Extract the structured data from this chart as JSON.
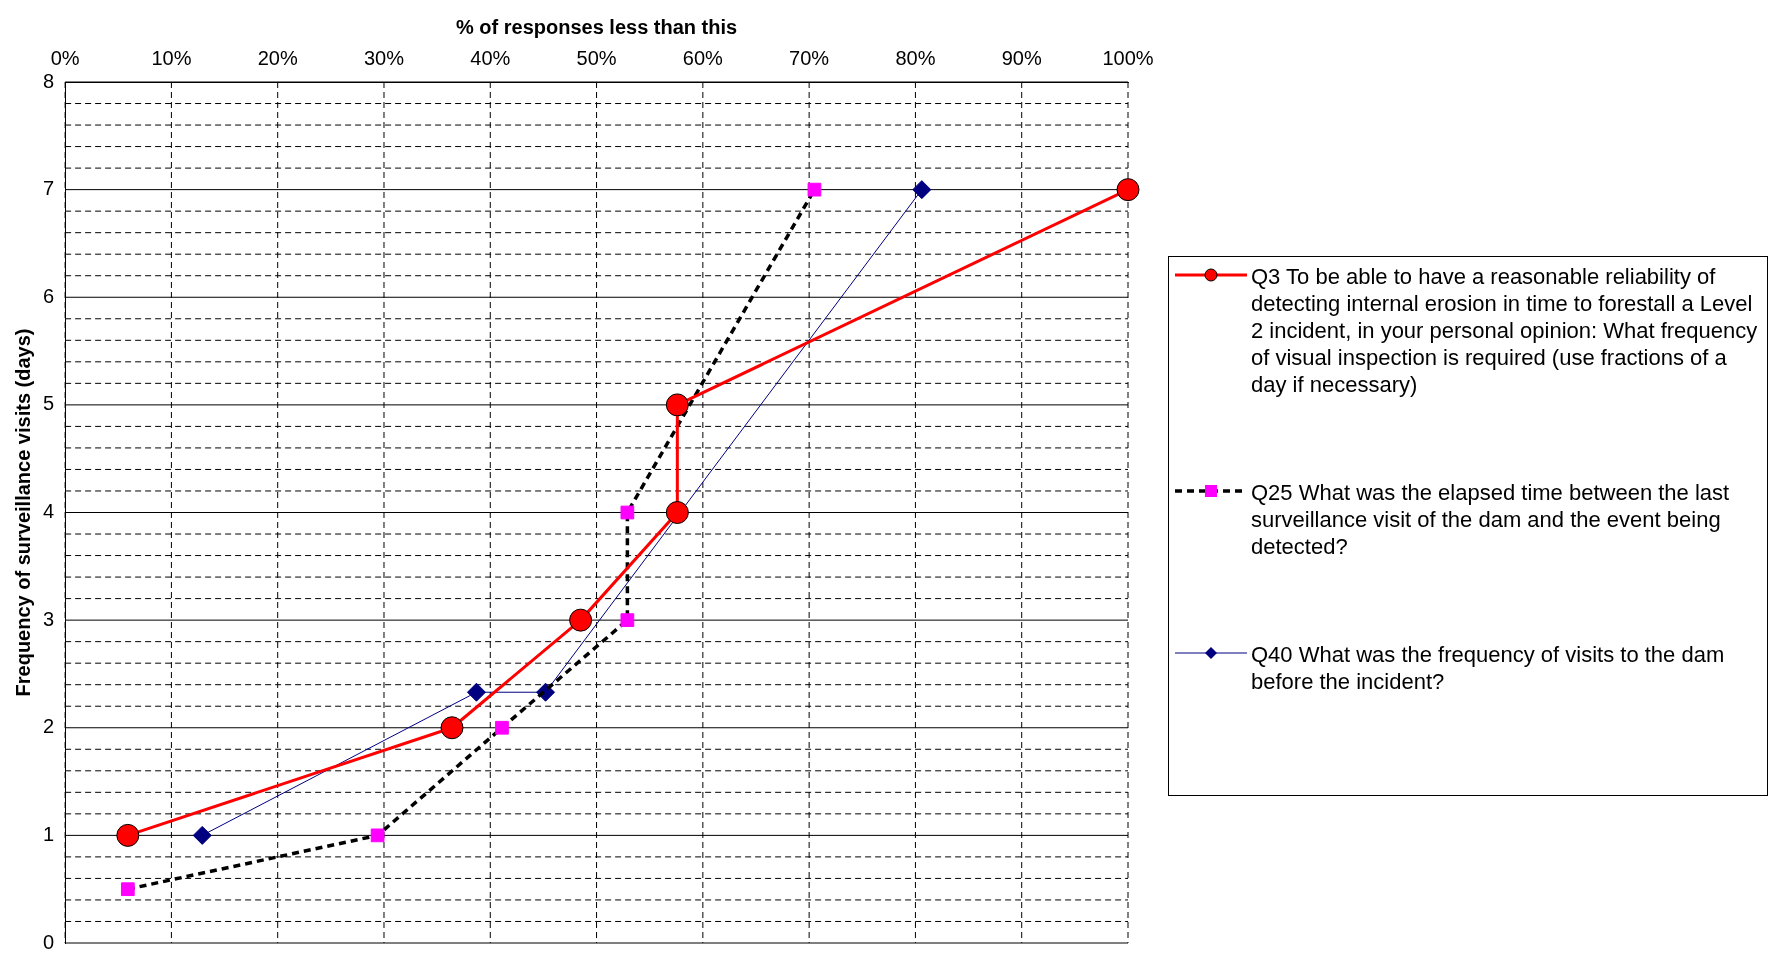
{
  "chart_data": {
    "type": "line",
    "xlabel": "% of responses less than this",
    "ylabel": "Frequency of surveillance visits (days)",
    "xlim": [
      0,
      100
    ],
    "xticks": [
      {
        "value": 0,
        "label": "0%"
      },
      {
        "value": 10,
        "label": "10%"
      },
      {
        "value": 20,
        "label": "20%"
      },
      {
        "value": 30,
        "label": "30%"
      },
      {
        "value": 40,
        "label": "40%"
      },
      {
        "value": 50,
        "label": "50%"
      },
      {
        "value": 60,
        "label": "60%"
      },
      {
        "value": 70,
        "label": "70%"
      },
      {
        "value": 80,
        "label": "80%"
      },
      {
        "value": 90,
        "label": "90%"
      },
      {
        "value": 100,
        "label": "100%"
      }
    ],
    "ylim": [
      0,
      8
    ],
    "yticks": [
      0,
      {
        "value": 0.2,
        "label": null
      },
      {
        "value": 0.4,
        "label": null
      },
      {
        "value": 0.6,
        "label": null
      },
      {
        "value": 0.8,
        "label": null
      },
      1,
      {
        "value": 1.2,
        "label": null
      },
      {
        "value": 1.4,
        "label": null
      },
      {
        "value": 1.6,
        "label": null
      },
      {
        "value": 1.8,
        "label": null
      },
      2,
      {
        "value": 2.2,
        "label": null
      },
      {
        "value": 2.4,
        "label": null
      },
      {
        "value": 2.6,
        "label": null
      },
      {
        "value": 2.8,
        "label": null
      },
      3,
      {
        "value": 3.2,
        "label": null
      },
      {
        "value": 3.4,
        "label": null
      },
      {
        "value": 3.6,
        "label": null
      },
      {
        "value": 3.8,
        "label": null
      },
      4,
      {
        "value": 4.2,
        "label": null
      },
      {
        "value": 4.4,
        "label": null
      },
      {
        "value": 4.6,
        "label": null
      },
      {
        "value": 4.8,
        "label": null
      },
      5,
      {
        "value": 5.2,
        "label": null
      },
      {
        "value": 5.4,
        "label": null
      },
      {
        "value": 5.6,
        "label": null
      },
      {
        "value": 5.8,
        "label": null
      },
      6,
      {
        "value": 6.2,
        "label": null
      },
      {
        "value": 6.4,
        "label": null
      },
      {
        "value": 6.6,
        "label": null
      },
      {
        "value": 6.8,
        "label": null
      },
      7,
      {
        "value": 7.2,
        "label": null
      },
      {
        "value": 7.4,
        "label": null
      },
      {
        "value": 7.6,
        "label": null
      },
      {
        "value": 7.8,
        "label": null
      },
      8
    ],
    "grid": true,
    "legend": "right",
    "series": [
      {
        "name": "Q3 To be able to have a reasonable reliability of detecting internal erosion in time to forestall a Level 2 incident, in your personal opinion: What frequency of visual inspection is required (use fractions of a day if necessary)",
        "color": "#ff0000",
        "marker": "circle",
        "line_style": "solid",
        "x": [
          5.9,
          36.4,
          48.5,
          57.6,
          57.6,
          100
        ],
        "values": [
          1,
          2,
          3,
          4,
          5,
          7
        ]
      },
      {
        "name": "Q25 What was the elapsed time between the last surveillance visit of the dam and the event being detected?",
        "color": "#ff00ff",
        "marker": "square",
        "line_style": "dashed",
        "x": [
          5.9,
          29.4,
          41.1,
          52.9,
          52.9,
          70.5
        ],
        "values": [
          0.5,
          1,
          2,
          3,
          4,
          7
        ]
      },
      {
        "name": "Q40 What was the frequency of visits to the dam before the incident?",
        "color": "#000080",
        "marker": "diamond",
        "line_style": "solid",
        "x": [
          12.9,
          38.7,
          45.2,
          80.6
        ],
        "values": [
          1,
          2.33,
          2.33,
          7
        ]
      }
    ]
  }
}
